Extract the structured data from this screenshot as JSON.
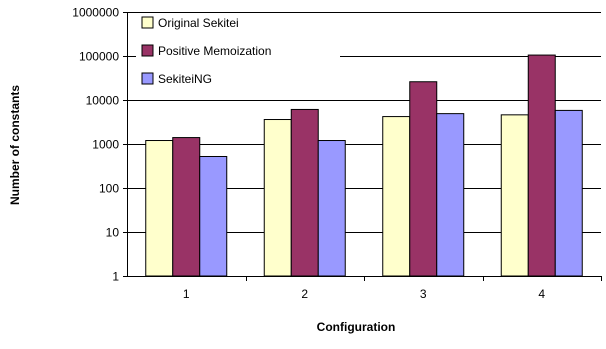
{
  "chart_data": {
    "type": "bar",
    "title": "",
    "xlabel": "Configuration",
    "ylabel": "Number of constants",
    "scale": "log",
    "ylim": [
      1,
      1000000
    ],
    "yticks": [
      "1",
      "10",
      "100",
      "1000",
      "10000",
      "100000",
      "1000000"
    ],
    "categories": [
      "1",
      "2",
      "3",
      "4"
    ],
    "grid": "horizontal",
    "legend_position": "top-left",
    "series": [
      {
        "name": "Original Sekitei",
        "color": "#FFFFCC",
        "values": [
          1200,
          3600,
          4200,
          4600
        ]
      },
      {
        "name": "Positive Memoization",
        "color": "#993366",
        "values": [
          1400,
          6100,
          26000,
          105000
        ]
      },
      {
        "name": "SekiteiNG",
        "color": "#9999FF",
        "values": [
          520,
          1200,
          4900,
          5800
        ]
      }
    ]
  }
}
